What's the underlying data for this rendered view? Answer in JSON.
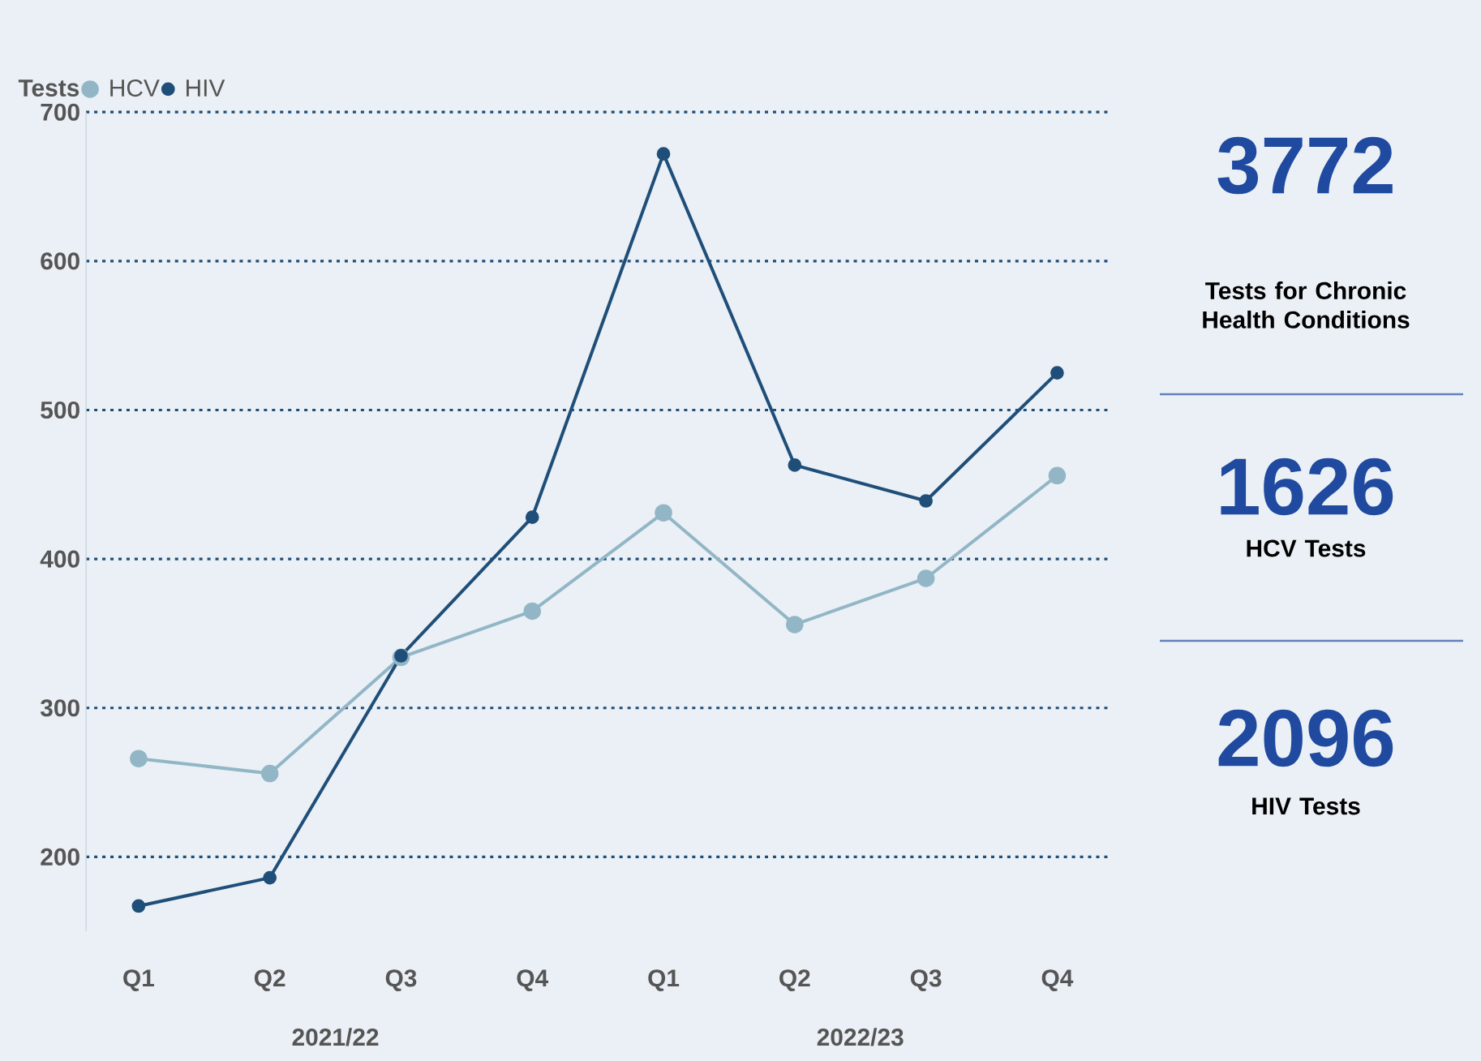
{
  "chart_data": [
    {
      "type": "line",
      "legend_title": "Tests",
      "legend": "top left",
      "grid": "y",
      "marker": "circle",
      "line_style": "solid",
      "categories": [
        "Q1",
        "Q2",
        "Q3",
        "Q4",
        "Q1",
        "Q2",
        "Q3",
        "Q4"
      ],
      "annotations": [
        "2021/22",
        "2022/23"
      ],
      "ylim": [
        150,
        700
      ],
      "yticks": [
        200,
        300,
        400,
        500,
        600,
        700
      ],
      "series": [
        {
          "name": "HCV",
          "color": "#92b6c6",
          "values": [
            266,
            256,
            334,
            365,
            431,
            356,
            387,
            456
          ]
        },
        {
          "name": "HIV",
          "color": "#1f4e79",
          "values": [
            167,
            186,
            335,
            428,
            672,
            463,
            439,
            525
          ]
        }
      ]
    },
    {
      "type": "other",
      "annotations": [
        "3772",
        "Tests for Chronic Health Conditions",
        "1626",
        "HCV Tests",
        "2096",
        "HIV Tests"
      ]
    }
  ]
}
